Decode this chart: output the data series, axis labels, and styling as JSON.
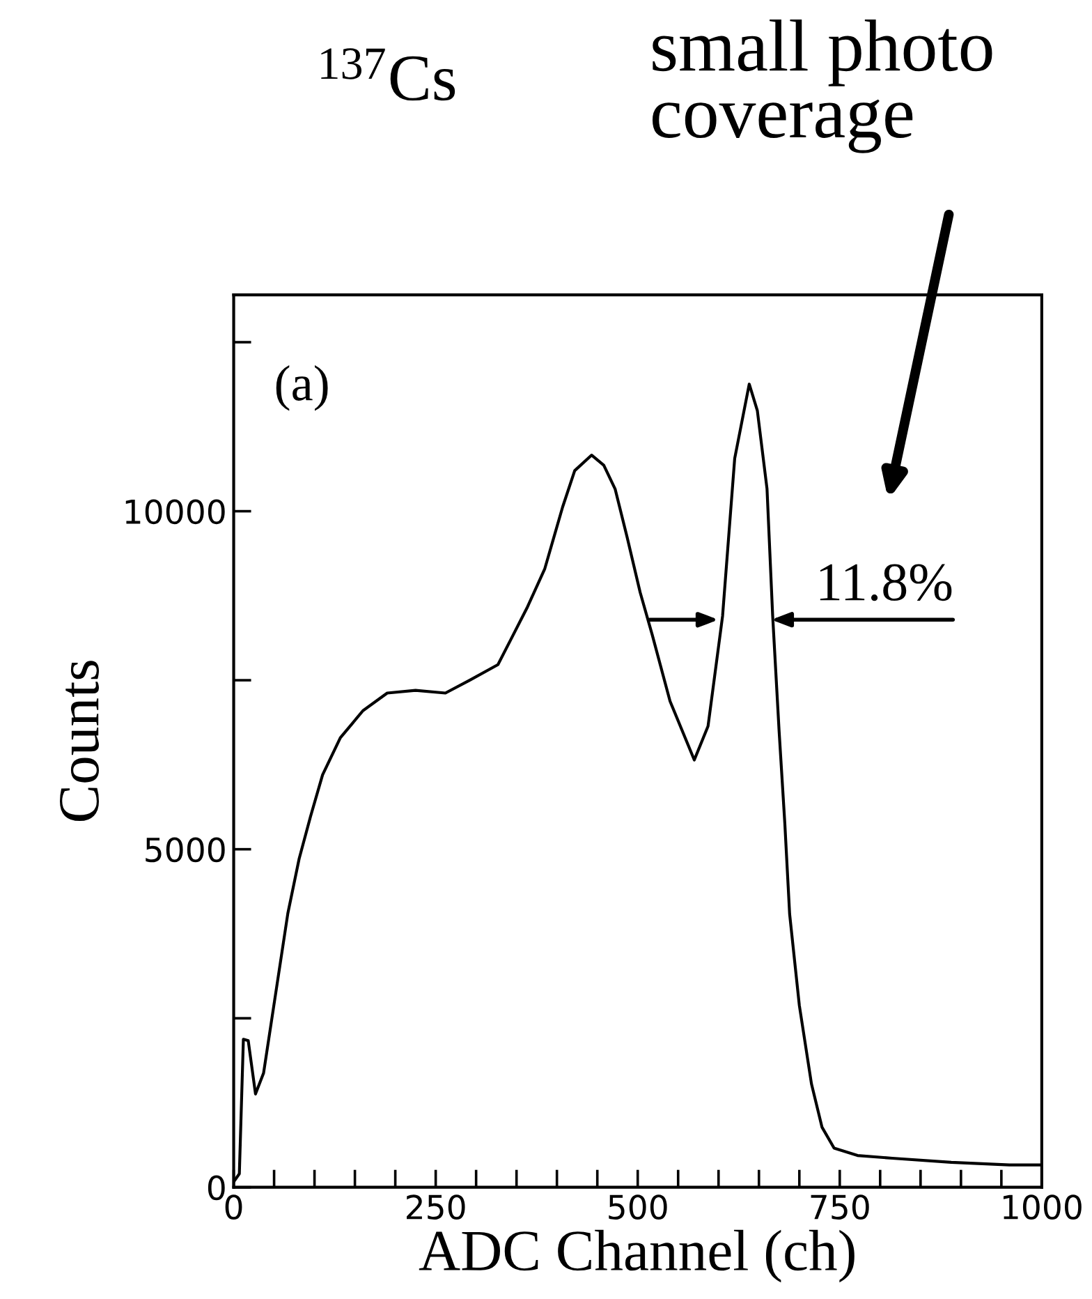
{
  "chart_data": {
    "type": "line",
    "title": "$^{137}$Cs",
    "xlabel": "ADC Channel (ch)",
    "ylabel": "Counts",
    "annotations": [
      "(a)",
      "11.8%",
      "small photo\ncoverage"
    ],
    "x": [
      0,
      7,
      12,
      18,
      27,
      37,
      52,
      67,
      81,
      95,
      110,
      132,
      160,
      190,
      225,
      262,
      292,
      327,
      342,
      363,
      385,
      407,
      422,
      443,
      458,
      472,
      487,
      503,
      518,
      540,
      570,
      587,
      605,
      620,
      638,
      648,
      660,
      667,
      675,
      682,
      688,
      700,
      715,
      728,
      743,
      772,
      815,
      888,
      960,
      1000
    ],
    "series": [
      {
        "color": "#000000",
        "values": [
          80,
          200,
          2190,
          2170,
          1380,
          1690,
          2870,
          4050,
          4860,
          5480,
          6100,
          6650,
          7050,
          7310,
          7350,
          7310,
          7500,
          7730,
          8080,
          8570,
          9150,
          10060,
          10600,
          10830,
          10680,
          10330,
          9610,
          8800,
          8170,
          7190,
          6320,
          6820,
          8450,
          10780,
          11880,
          11490,
          10330,
          8450,
          6740,
          5390,
          4040,
          2690,
          1530,
          890,
          580,
          470,
          430,
          370,
          330,
          330
        ]
      }
    ],
    "xlim": [
      0,
      1000
    ],
    "ylim": [
      0,
      13200
    ],
    "xticks": [
      0,
      {
        "value": 50,
        "label": null
      },
      {
        "value": 100,
        "label": null
      },
      {
        "value": 150,
        "label": null
      },
      {
        "value": 200,
        "label": null
      },
      250,
      {
        "value": 300,
        "label": null
      },
      {
        "value": 350,
        "label": null
      },
      {
        "value": 400,
        "label": null
      },
      {
        "value": 450,
        "label": null
      },
      500,
      {
        "value": 550,
        "label": null
      },
      {
        "value": 600,
        "label": null
      },
      {
        "value": 650,
        "label": null
      },
      {
        "value": 700,
        "label": null
      },
      750,
      {
        "value": 800,
        "label": null
      },
      {
        "value": 850,
        "label": null
      },
      {
        "value": 900,
        "label": null
      },
      {
        "value": 950,
        "label": null
      },
      1000
    ],
    "yticks": [
      0,
      {
        "value": 2500,
        "label": null
      },
      5000,
      {
        "value": 7500,
        "label": null
      },
      10000,
      {
        "value": 12500,
        "label": null
      }
    ]
  }
}
